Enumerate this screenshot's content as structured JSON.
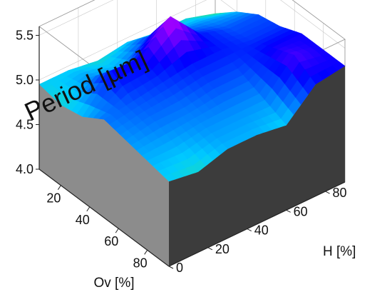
{
  "chart_data": {
    "type": "surface3d",
    "z_title": "Period [µm]",
    "x_label": "Ov [%]",
    "y_label": "H [%]",
    "z_ticks": [
      "4.0",
      "4.5",
      "5.0",
      "5.5"
    ],
    "x_ticks": [
      "20",
      "40",
      "60",
      "80"
    ],
    "y_ticks": [
      "0",
      "20",
      "40",
      "60",
      "80"
    ],
    "zlim": [
      4.0,
      5.6
    ],
    "xlim": [
      5,
      95
    ],
    "ylim": [
      0,
      90
    ],
    "grid": true,
    "colormap": [
      "#ff0000",
      "#ffff00",
      "#66ff00",
      "#00ccff",
      "#0000ff",
      "#cc00ff"
    ],
    "colormap_range": [
      4.0,
      5.6
    ],
    "x": [
      5,
      20,
      35,
      50,
      65,
      80,
      95
    ],
    "y": [
      0,
      15,
      30,
      45,
      60,
      75,
      90
    ],
    "z": [
      [
        4.95,
        4.9,
        4.95,
        5.1,
        5.05,
        5.0,
        4.95
      ],
      [
        4.95,
        5.05,
        5.3,
        5.15,
        5.1,
        5.0,
        4.9
      ],
      [
        4.9,
        5.0,
        5.3,
        5.2,
        5.1,
        5.05,
        5.0
      ],
      [
        4.95,
        5.2,
        5.6,
        5.25,
        5.15,
        5.05,
        5.0
      ],
      [
        4.9,
        5.1,
        5.25,
        5.25,
        5.15,
        5.05,
        4.95
      ],
      [
        4.9,
        5.05,
        5.15,
        5.2,
        5.3,
        5.4,
        5.25
      ],
      [
        4.8,
        5.0,
        5.15,
        5.2,
        5.3,
        5.3,
        5.3
      ]
    ]
  }
}
